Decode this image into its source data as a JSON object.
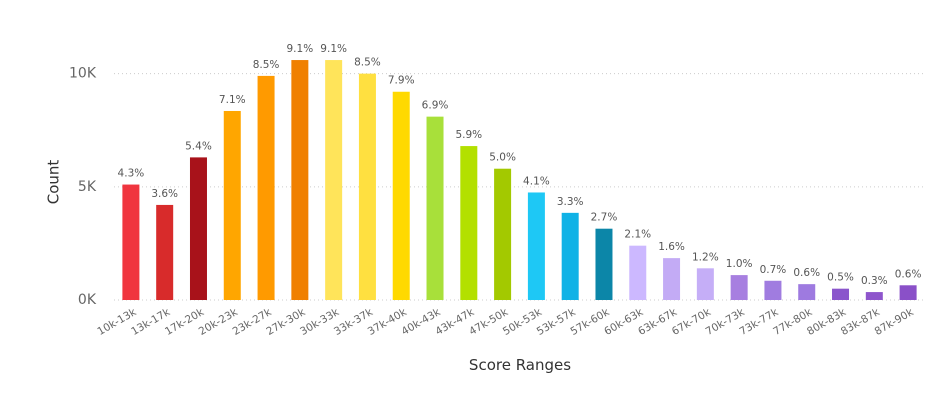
{
  "chart_data": {
    "type": "bar",
    "categories": [
      "10k-13k",
      "13k-17k",
      "17k-20k",
      "20k-23k",
      "23k-27k",
      "27k-30k",
      "30k-33k",
      "33k-37k",
      "37k-40k",
      "40k-43k",
      "43k-47k",
      "47k-50k",
      "50k-53k",
      "53k-57k",
      "57k-60k",
      "60k-63k",
      "63k-67k",
      "67k-70k",
      "70k-73k",
      "73k-77k",
      "77k-80k",
      "80k-83k",
      "83k-87k",
      "87k-90k"
    ],
    "values": [
      5100,
      4200,
      6300,
      8350,
      9900,
      10600,
      10600,
      10000,
      9200,
      8100,
      6800,
      5800,
      4750,
      3850,
      3150,
      2400,
      1850,
      1400,
      1100,
      850,
      700,
      500,
      350,
      650
    ],
    "percent_labels": [
      "4.3%",
      "3.6%",
      "5.4%",
      "7.1%",
      "8.5%",
      "9.1%",
      "9.1%",
      "8.5%",
      "7.9%",
      "6.9%",
      "5.9%",
      "5.0%",
      "4.1%",
      "3.3%",
      "2.7%",
      "2.1%",
      "1.6%",
      "1.2%",
      "1.0%",
      "0.7%",
      "0.6%",
      "0.5%",
      "0.3%",
      "0.6%"
    ],
    "colors": [
      "#f0353f",
      "#d82b2b",
      "#a8121a",
      "#ffa600",
      "#ff9a00",
      "#f08000",
      "#ffe45a",
      "#ffe040",
      "#ffd900",
      "#a8e03a",
      "#b3e000",
      "#a3c900",
      "#1ec8f5",
      "#10b2e6",
      "#0c86a8",
      "#ccb8ff",
      "#c3abf5",
      "#c5aef7",
      "#a77fe0",
      "#a07ce0",
      "#9e7ae0",
      "#8a55cc",
      "#8e55cc",
      "#8a50c8"
    ],
    "xlabel": "Score Ranges",
    "ylabel": "Count",
    "ylim": [
      0,
      11000
    ],
    "yticks": [
      {
        "value": 0,
        "label": "0K"
      },
      {
        "value": 5000,
        "label": "5K"
      },
      {
        "value": 10000,
        "label": "10K"
      }
    ],
    "grid": true
  }
}
